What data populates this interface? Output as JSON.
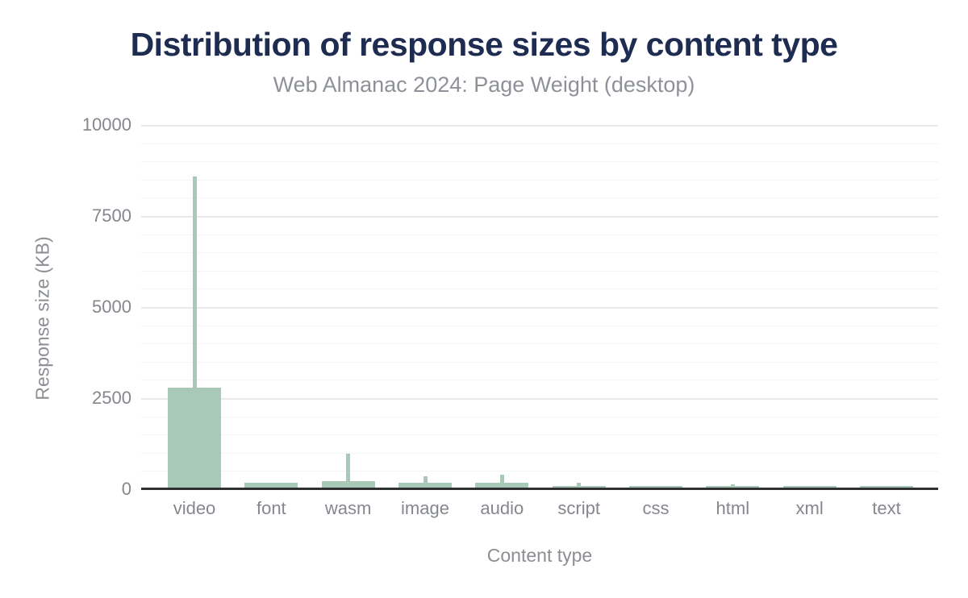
{
  "chart_data": {
    "type": "bar",
    "variant": "bar-with-upper-whisker",
    "title": "Distribution of response sizes by content type",
    "subtitle": "Web Almanac 2024: Page Weight (desktop)",
    "xlabel": "Content type",
    "ylabel": "Response size (KB)",
    "categories": [
      "video",
      "font",
      "wasm",
      "image",
      "audio",
      "script",
      "css",
      "html",
      "xml",
      "text"
    ],
    "series": [
      {
        "name": "bar_top_kb",
        "values": [
          2750,
          140,
          180,
          130,
          130,
          45,
          45,
          55,
          55,
          55
        ]
      },
      {
        "name": "whisker_top_kb",
        "values": [
          8550,
          null,
          930,
          320,
          350,
          130,
          null,
          95,
          null,
          null
        ]
      }
    ],
    "ylim": [
      0,
      10000
    ],
    "yticks": [
      0,
      2500,
      5000,
      7500,
      10000
    ],
    "ytick_labels": [
      "0",
      "2500",
      "5000",
      "7500",
      "10000"
    ],
    "minor_ytick_step": 500,
    "grid": "horizontal",
    "legend": "none",
    "colors": {
      "bar_fill": "#a8c9b8",
      "whisker": "#a8c9b8",
      "axis_line": "#2f2f2f",
      "grid_major": "#e7e9eb",
      "grid_minor": "#f4f5f6",
      "title": "#1e2c52",
      "subtitle": "#8e9298",
      "tick_label": "#84878e",
      "axis_title": "#8b8e93",
      "background": "#ffffff"
    }
  }
}
